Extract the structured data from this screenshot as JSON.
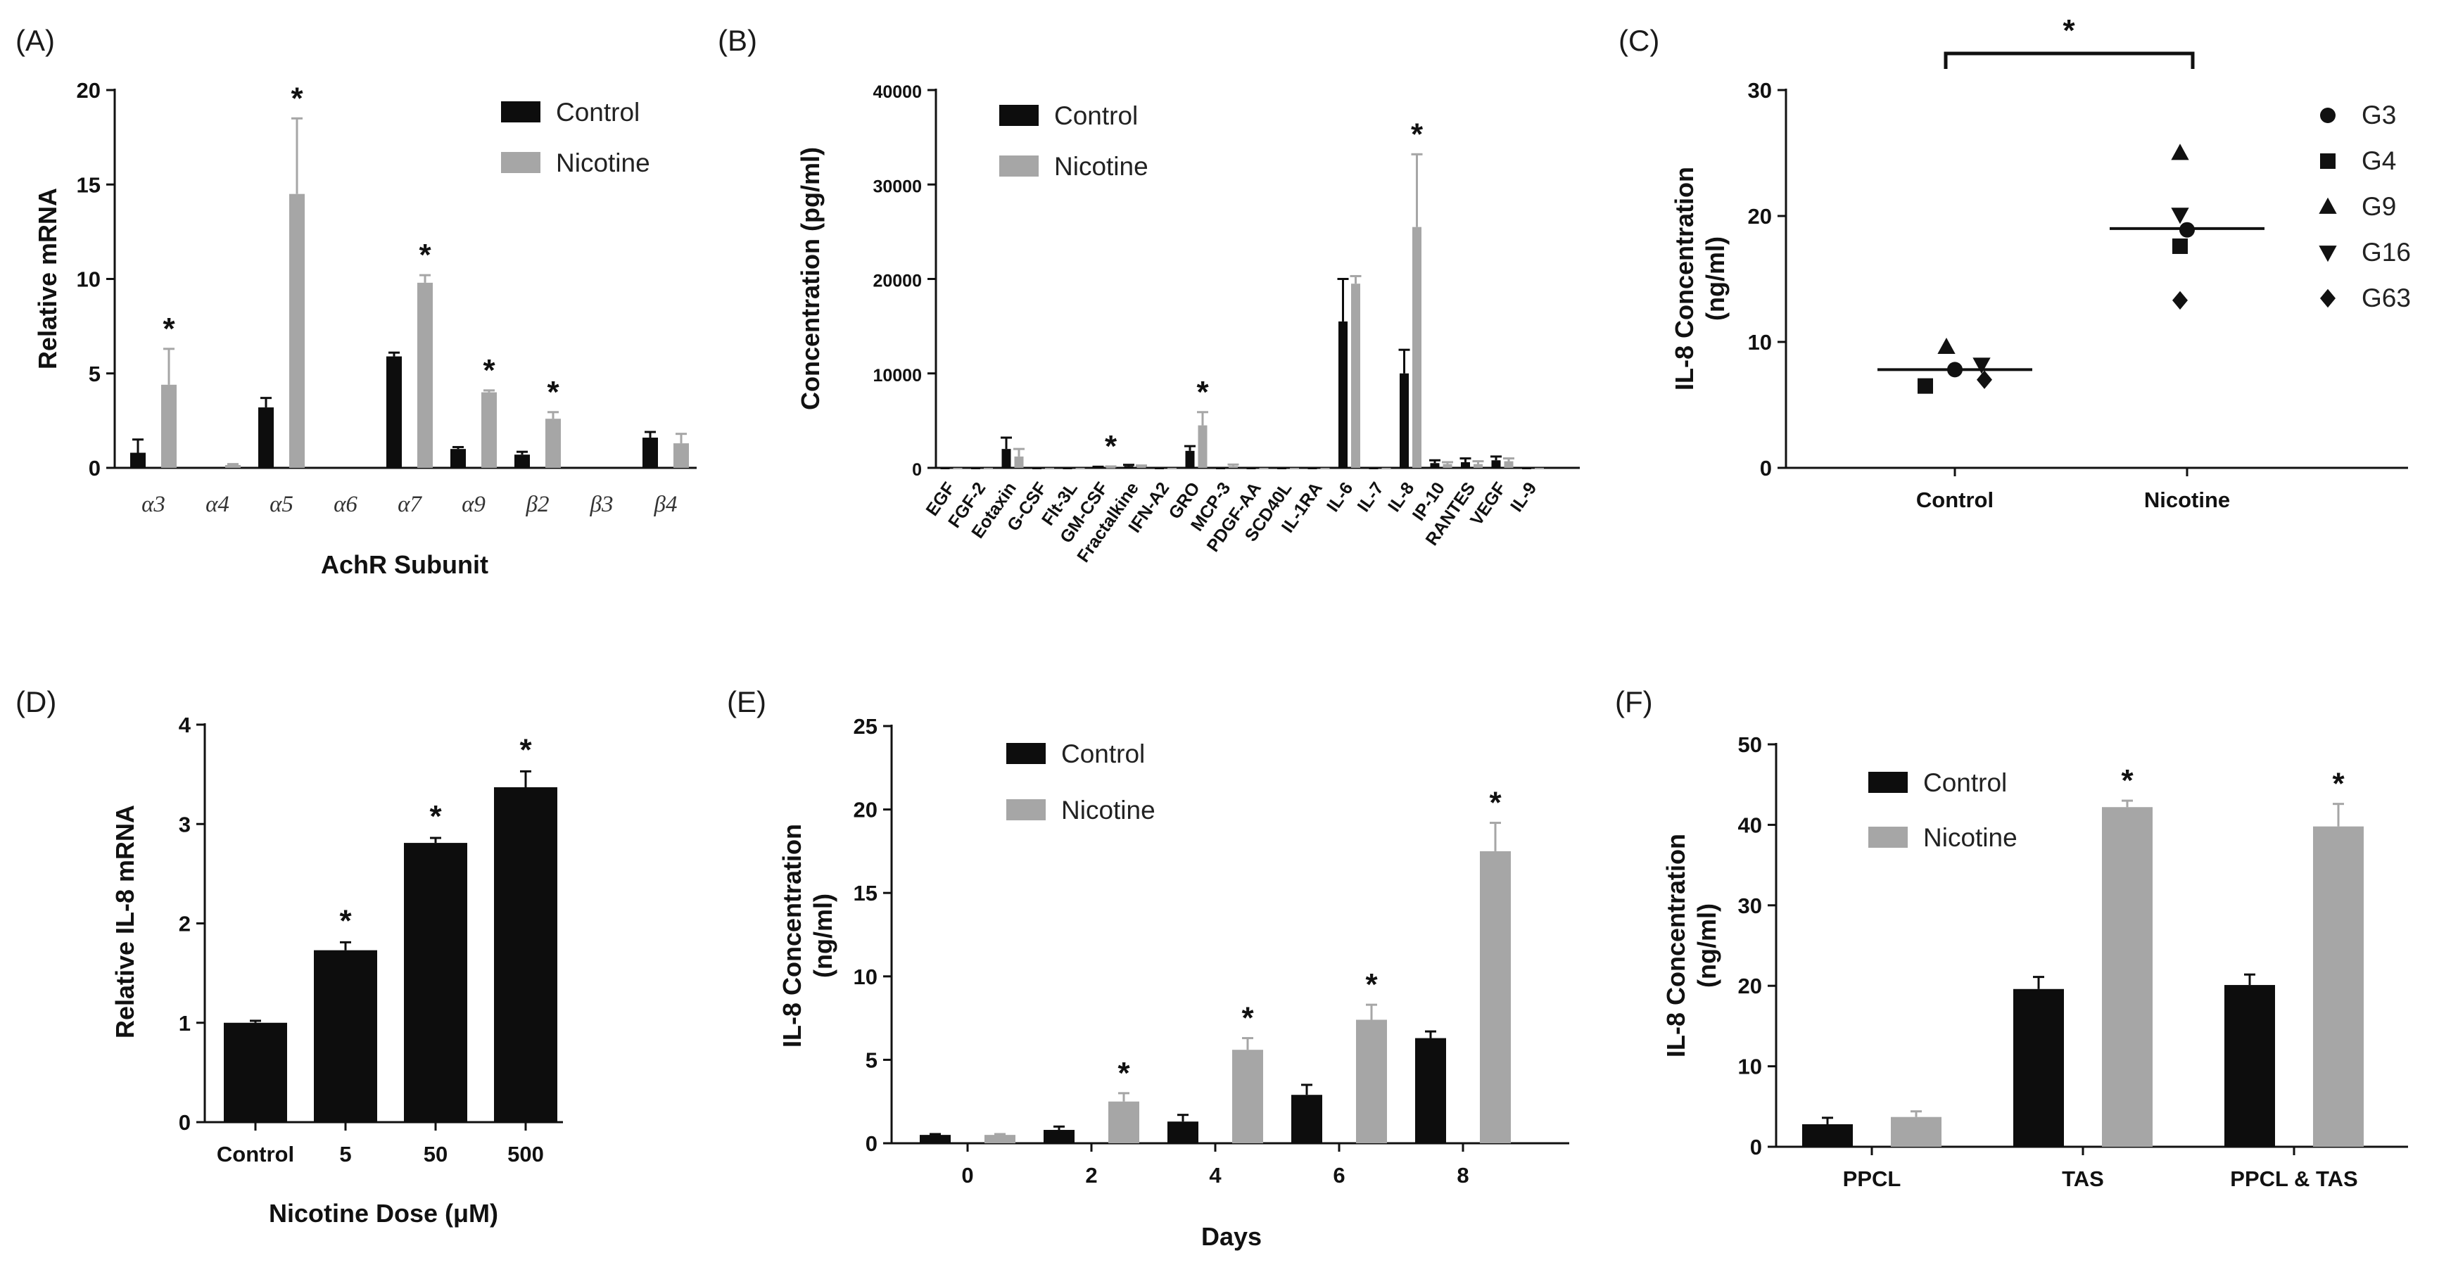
{
  "panels": [
    {
      "label": "(A)"
    },
    {
      "label": "(B)"
    },
    {
      "label": "(C)"
    },
    {
      "label": "(D)"
    },
    {
      "label": "(E)"
    },
    {
      "label": "(F)"
    }
  ],
  "colors": {
    "control": "#0d0d0d",
    "nicotine": "#a6a6a6"
  },
  "chart_data": [
    {
      "panel": "(A)",
      "type": "bar",
      "xlabel": "AchR Subunit",
      "ylabel": "Relative mRNA",
      "ylim": [
        0,
        20
      ],
      "yticks": [
        0,
        5,
        10,
        15,
        20
      ],
      "legend": [
        "Control",
        "Nicotine"
      ],
      "legend_position": "top-right",
      "categories": [
        "α3",
        "α4",
        "α5",
        "α6",
        "α7",
        "α9",
        "β2",
        "β3",
        "β4"
      ],
      "series": [
        {
          "name": "Control",
          "values": [
            0.8,
            0,
            3.2,
            0,
            5.9,
            1.0,
            0.7,
            0,
            1.6
          ],
          "errors": [
            0.7,
            0,
            0.5,
            0,
            0.2,
            0.1,
            0.15,
            0,
            0.3
          ]
        },
        {
          "name": "Nicotine",
          "values": [
            4.4,
            0.15,
            14.5,
            0,
            9.8,
            4.0,
            2.6,
            0,
            1.3
          ],
          "errors": [
            1.9,
            0.05,
            4.0,
            0,
            0.4,
            0.1,
            0.35,
            0,
            0.5
          ]
        }
      ],
      "significant": [
        0,
        2,
        4,
        5,
        6
      ],
      "annotation": "*"
    },
    {
      "panel": "(B)",
      "type": "bar",
      "xlabel": "",
      "ylabel": "Concentration (pg/ml)",
      "ylim": [
        0,
        40000
      ],
      "yticks": [
        0,
        10000,
        20000,
        30000,
        40000
      ],
      "legend": [
        "Control",
        "Nicotine"
      ],
      "legend_position": "top-left",
      "categories": [
        "EGF",
        "FGF-2",
        "Eotaxin",
        "G-CSF",
        "Flt-3L",
        "GM-CSF",
        "Fractalkine",
        "IFN-A2",
        "GRO",
        "MCP-3",
        "PDGF-AA",
        "SCD40L",
        "IL-1RA",
        "IL-6",
        "IL-7",
        "IL-8",
        "IP-10",
        "RANTES",
        "VEGF",
        "IL-9"
      ],
      "series": [
        {
          "name": "Control",
          "values": [
            0,
            0,
            2000,
            0,
            0,
            80,
            200,
            0,
            1800,
            0,
            0,
            0,
            0,
            15500,
            0,
            10000,
            500,
            600,
            800,
            0
          ],
          "errors": [
            0,
            0,
            1200,
            0,
            0,
            40,
            120,
            0,
            500,
            0,
            0,
            0,
            0,
            4500,
            0,
            2500,
            300,
            400,
            400,
            0
          ]
        },
        {
          "name": "Nicotine",
          "values": [
            0,
            0,
            1200,
            0,
            0,
            100,
            150,
            0,
            4500,
            200,
            0,
            0,
            0,
            19500,
            0,
            25500,
            400,
            400,
            700,
            0
          ],
          "errors": [
            0,
            0,
            800,
            0,
            0,
            50,
            100,
            0,
            1400,
            150,
            0,
            0,
            0,
            800,
            0,
            7700,
            200,
            300,
            300,
            0
          ]
        }
      ],
      "significant": [
        5,
        8,
        15
      ],
      "annotation": "*"
    },
    {
      "panel": "(C)",
      "type": "scatter",
      "xlabel": "",
      "ylabel": "IL-8 Concentration\n(ng/ml)",
      "ylabel_lines": [
        "IL-8 Concentration",
        "(ng/ml)"
      ],
      "ylim": [
        0,
        30
      ],
      "yticks": [
        0,
        10,
        20,
        30
      ],
      "categories": [
        "Control",
        "Nicotine"
      ],
      "legend": [
        "G3",
        "G4",
        "G9",
        "G16",
        "G63"
      ],
      "legend_position": "right",
      "markers": [
        "circle",
        "square",
        "triangle-up",
        "triangle-down",
        "diamond"
      ],
      "points": {
        "Control": [
          7.8,
          6.5,
          9.6,
          8.2,
          7.0
        ],
        "Nicotine": [
          18.9,
          17.6,
          25.0,
          20.1,
          13.3
        ]
      },
      "means": [
        7.8,
        19.0
      ],
      "annotation": "*"
    },
    {
      "panel": "(D)",
      "type": "bar",
      "xlabel": "Nicotine Dose (μM)",
      "ylabel": "Relative IL-8 mRNA",
      "ylim": [
        0,
        4
      ],
      "yticks": [
        0,
        1,
        2,
        3,
        4
      ],
      "categories": [
        "Control",
        "5",
        "50",
        "500"
      ],
      "series": [
        {
          "name": "IL-8 mRNA",
          "values": [
            1.0,
            1.73,
            2.81,
            3.37
          ],
          "errors": [
            0.02,
            0.08,
            0.05,
            0.16
          ]
        }
      ],
      "significant": [
        1,
        2,
        3
      ],
      "annotation": "*"
    },
    {
      "panel": "(E)",
      "type": "bar",
      "xlabel": "Days",
      "ylabel": "IL-8 Concentration\n(ng/ml)",
      "ylabel_lines": [
        "IL-8 Concentration",
        "(ng/ml)"
      ],
      "ylim": [
        0,
        25
      ],
      "yticks": [
        0,
        5,
        10,
        15,
        20,
        25
      ],
      "legend": [
        "Control",
        "Nicotine"
      ],
      "legend_position": "top-left",
      "categories": [
        "0",
        "2",
        "4",
        "6",
        "8"
      ],
      "series": [
        {
          "name": "Control",
          "values": [
            0.5,
            0.8,
            1.3,
            2.9,
            6.3
          ],
          "errors": [
            0.05,
            0.2,
            0.4,
            0.6,
            0.4
          ]
        },
        {
          "name": "Nicotine",
          "values": [
            0.5,
            2.5,
            5.6,
            7.4,
            17.5
          ],
          "errors": [
            0.05,
            0.5,
            0.7,
            0.9,
            1.7
          ]
        }
      ],
      "significant": [
        1,
        2,
        3,
        4
      ],
      "annotation": "*"
    },
    {
      "panel": "(F)",
      "type": "bar",
      "xlabel": "",
      "ylabel": "IL-8 Concentration\n(ng/ml)",
      "ylabel_lines": [
        "IL-8 Concentration",
        "(ng/ml)"
      ],
      "ylim": [
        0,
        50
      ],
      "yticks": [
        0,
        10,
        20,
        30,
        40,
        50
      ],
      "legend": [
        "Control",
        "Nicotine"
      ],
      "legend_position": "top-left",
      "categories": [
        "PPCL",
        "TAS",
        "PPCL & TAS"
      ],
      "series": [
        {
          "name": "Control",
          "values": [
            2.8,
            19.6,
            20.1
          ],
          "errors": [
            0.8,
            1.5,
            1.3
          ]
        },
        {
          "name": "Nicotine",
          "values": [
            3.7,
            42.2,
            39.8
          ],
          "errors": [
            0.7,
            0.8,
            2.8
          ]
        }
      ],
      "significant": [
        1,
        2
      ],
      "annotation": "*"
    }
  ]
}
